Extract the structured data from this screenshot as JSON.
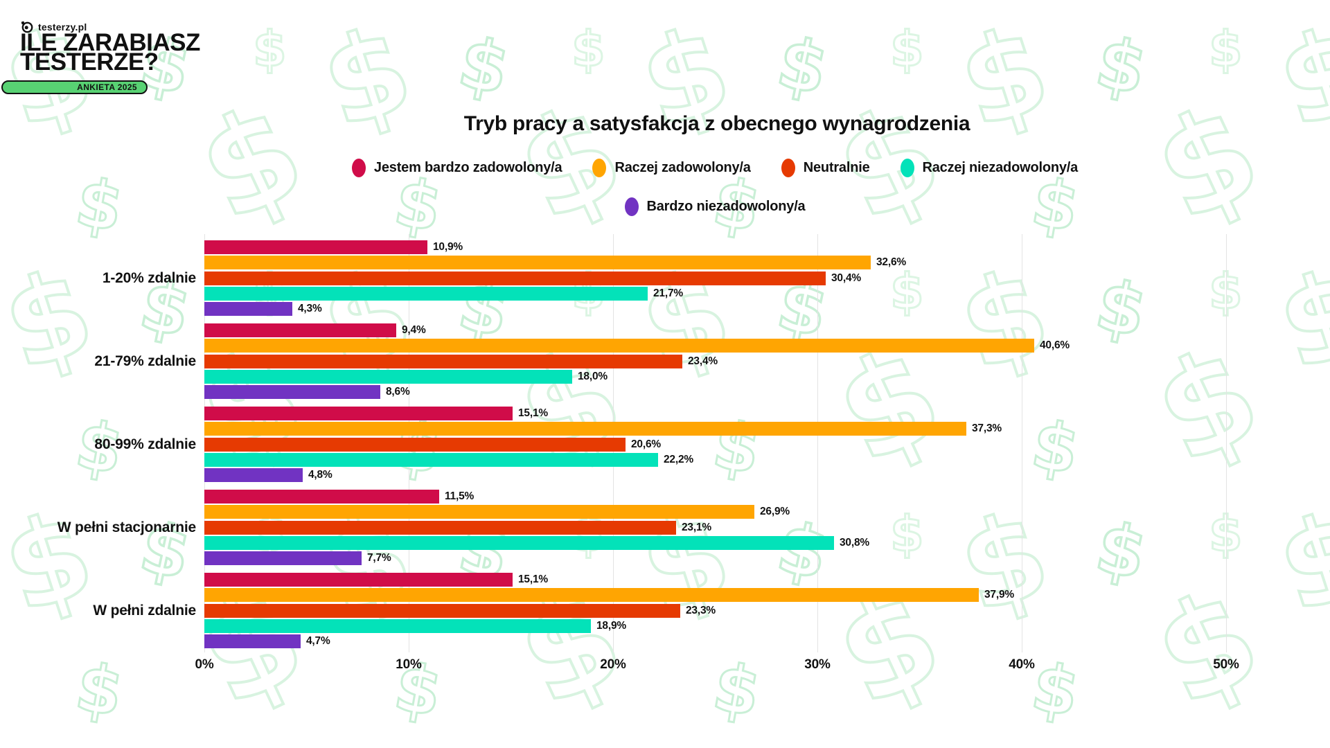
{
  "header": {
    "logo_text": "testerzy.pl",
    "title_line1": "ILE ZARABIASZ",
    "title_line2": "TESTERZE?",
    "badge": "ANKIETA 2025"
  },
  "chart_data": {
    "type": "bar",
    "orientation": "horizontal",
    "title": "Tryb pracy a satysfakcja z obecnego wynagrodzenia",
    "categories": [
      "1-20% zdalnie",
      "21-79% zdalnie",
      "80-99% zdalnie",
      "W pełni stacjonarnie",
      "W pełni zdalnie"
    ],
    "series": [
      {
        "name": "Jestem bardzo zadowolony/a",
        "color": "#D00C49",
        "values": [
          10.9,
          9.4,
          15.1,
          11.5,
          15.1
        ]
      },
      {
        "name": "Raczej zadowolony/a",
        "color": "#FFA502",
        "values": [
          32.6,
          40.6,
          37.3,
          26.9,
          37.9
        ]
      },
      {
        "name": "Neutralnie",
        "color": "#E63A02",
        "values": [
          30.4,
          23.4,
          20.6,
          23.1,
          23.3
        ]
      },
      {
        "name": "Raczej niezadowolony/a",
        "color": "#03E2B9",
        "values": [
          21.7,
          18.0,
          22.2,
          30.8,
          18.9
        ]
      },
      {
        "name": "Bardzo niezadowolony/a",
        "color": "#7133C2",
        "values": [
          4.3,
          8.6,
          4.8,
          7.7,
          4.7
        ]
      }
    ],
    "x_ticks": [
      "0%",
      "10%",
      "20%",
      "30%",
      "40%",
      "50%"
    ],
    "xlim": [
      0,
      50
    ],
    "value_label_format": "comma-decimal-percent",
    "grid": "vertical",
    "legend_position": "top"
  },
  "style": {
    "accent_green": "#58D273",
    "pattern_green_light": "#D8F3E0",
    "pattern_green_dark": "#C9EFD6",
    "text_color": "#111111",
    "gridline_color": "#E3E3E3",
    "background": "#FFFFFF"
  }
}
